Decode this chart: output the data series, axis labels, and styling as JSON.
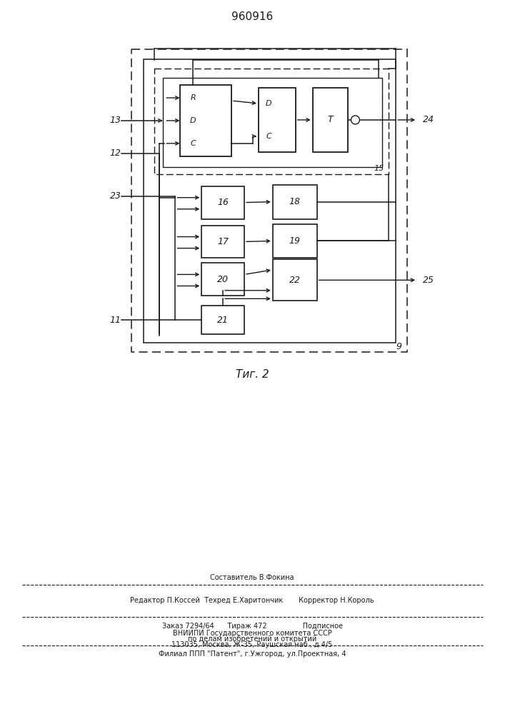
{
  "title": "960916",
  "fig_label": "Τиг. 2",
  "background_color": "#ffffff",
  "line_color": "#1a1a1a",
  "text_color": "#1a1a1a",
  "footer_line1": "Составитель В.Фокина",
  "footer_line2": "Редактор П.Коссей  Техред Е.Харитончик       Корректор Н.Король",
  "footer_line3": "Заказ 7294/64      Тираж 472                Подписное",
  "footer_line4": "ВНИИПИ Государственного комитета СССР",
  "footer_line5": "по делам изобретений и открытий",
  "footer_line6": "113035, Москва, Ж-35, Раушская наб., д.4/5",
  "footer_line7": "Филиал ППП \"Патент\", г.Ужгород, ул.Проектная, 4"
}
